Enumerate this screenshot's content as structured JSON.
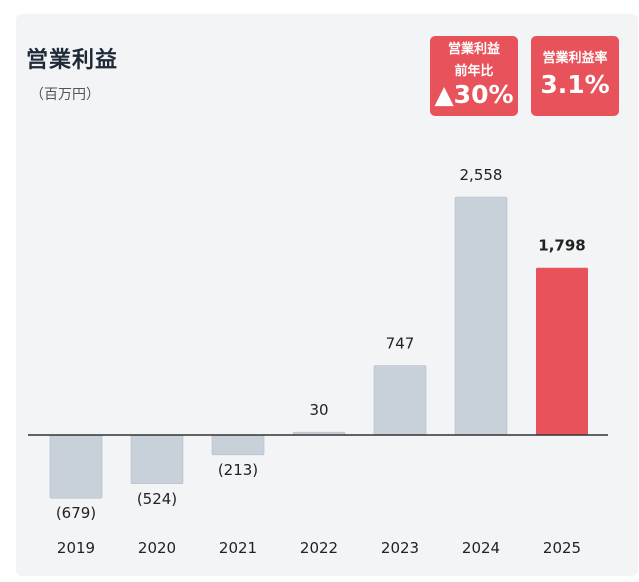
{
  "header": {
    "title": "営業利益",
    "unit": "（百万円）"
  },
  "badges": [
    {
      "label_line1": "営業利益",
      "label_line2": "前年比",
      "value": "▲30%"
    },
    {
      "label": "営業利益率",
      "value": "3.1%"
    }
  ],
  "colors": {
    "bar": "#c8d1da",
    "highlight": "#e8535b",
    "axis": "#333333"
  },
  "chart_data": {
    "type": "bar",
    "title": "営業利益",
    "ylabel": "（百万円）",
    "categories": [
      "2019",
      "2020",
      "2021",
      "2022",
      "2023",
      "2024",
      "2025"
    ],
    "values": [
      -679,
      -524,
      -213,
      30,
      747,
      2558,
      1798
    ],
    "value_labels": [
      "(679)",
      "(524)",
      "(213)",
      "30",
      "747",
      "2,558",
      "1,798"
    ],
    "highlight_index": 6,
    "ylim": [
      -800,
      3000
    ],
    "grid": false
  }
}
